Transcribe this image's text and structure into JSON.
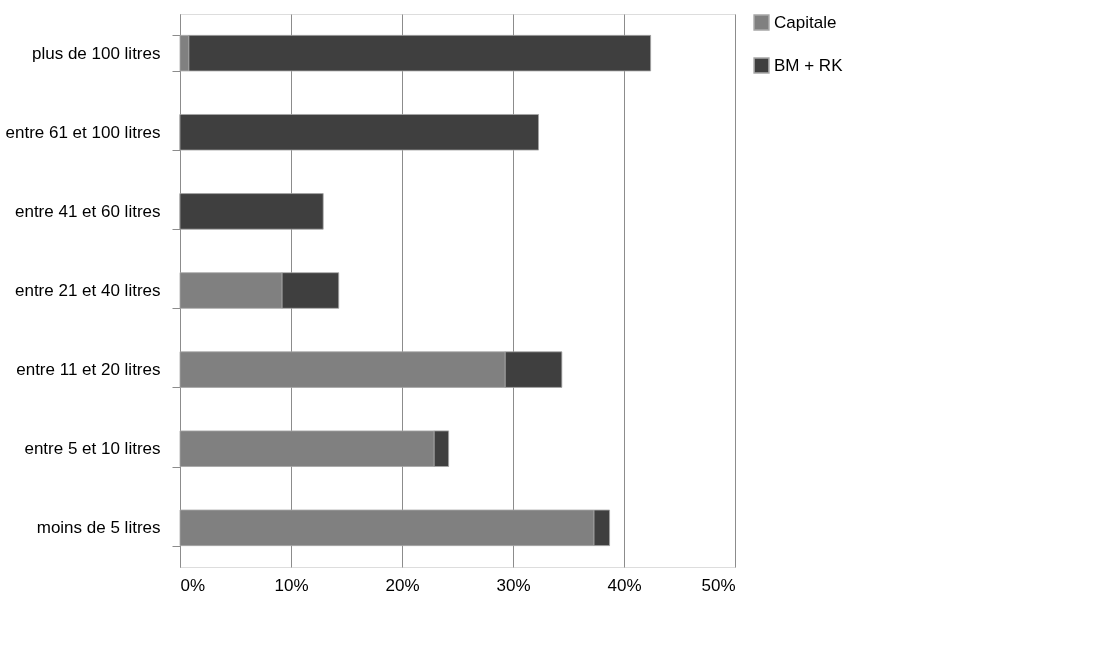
{
  "chart_data": {
    "type": "bar",
    "orientation": "horizontal",
    "stacked": true,
    "categories": [
      "plus de 100 litres",
      "entre 61 et 100 litres",
      "entre 41 et 60 litres",
      "entre 21 et 40 litres",
      "entre 11 et 20 litres",
      "entre 5 et 10 litres",
      "moins de 5 litres"
    ],
    "series": [
      {
        "name": "Capitale",
        "color": "#808080",
        "values": [
          0.8,
          0,
          0,
          9.2,
          29.3,
          22.9,
          37.3
        ]
      },
      {
        "name": "BM + RK",
        "color": "#3f3f3f",
        "values": [
          41.6,
          32.3,
          12.9,
          5.1,
          5.1,
          1.3,
          1.4
        ]
      }
    ],
    "xlim": [
      0,
      50
    ],
    "xticks": [
      {
        "value": 0,
        "label": "0%"
      },
      {
        "value": 10,
        "label": "10%"
      },
      {
        "value": 20,
        "label": "20%"
      },
      {
        "value": 30,
        "label": "30%"
      },
      {
        "value": 40,
        "label": "40%"
      },
      {
        "value": 50,
        "label": "50%"
      }
    ],
    "grid": "x",
    "legend": "right"
  }
}
